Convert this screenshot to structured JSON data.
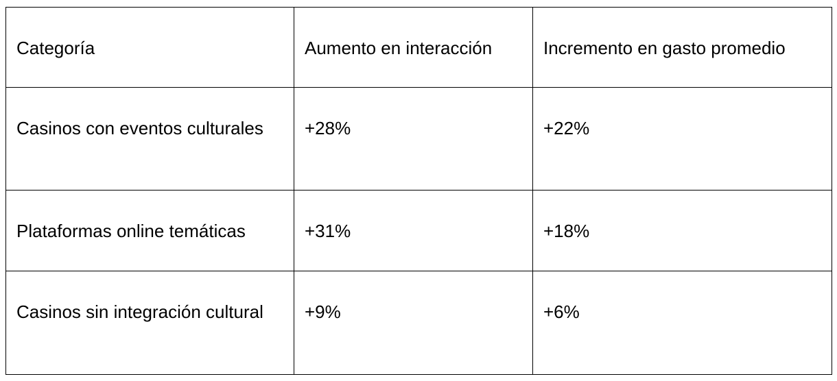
{
  "table": {
    "header": [
      "Categoría",
      "Aumento en interacción",
      "Incremento en gasto promedio"
    ],
    "rows": [
      [
        "Casinos con eventos culturales",
        "+28%",
        "+22%"
      ],
      [
        "Plataformas online temáticas",
        "+31%",
        "+18%"
      ],
      [
        "Casinos sin integración cultural",
        "+9%",
        "+6%"
      ]
    ]
  }
}
